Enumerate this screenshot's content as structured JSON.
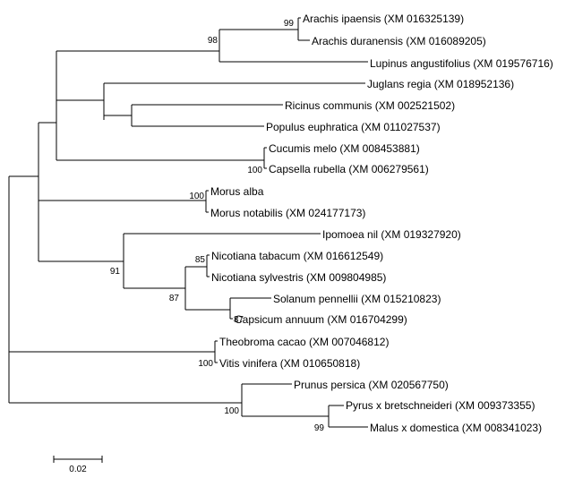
{
  "tree": {
    "taxa": [
      {
        "id": "t1",
        "label": "Arachis ipaensis (XM 016325139)"
      },
      {
        "id": "t2",
        "label": "Arachis duranensis (XM 016089205)"
      },
      {
        "id": "t3",
        "label": "Lupinus angustifolius (XM 019576716)"
      },
      {
        "id": "t4",
        "label": "Juglans regia (XM 018952136)"
      },
      {
        "id": "t5",
        "label": "Ricinus communis (XM 002521502)"
      },
      {
        "id": "t6",
        "label": "Populus euphratica (XM 011027537)"
      },
      {
        "id": "t7",
        "label": "Cucumis melo (XM 008453881)"
      },
      {
        "id": "t8",
        "label": "Capsella rubella (XM 006279561)"
      },
      {
        "id": "t9",
        "label": "Morus alba"
      },
      {
        "id": "t10",
        "label": "Morus notabilis (XM 024177173)"
      },
      {
        "id": "t11",
        "label": "Ipomoea nil (XM 019327920)"
      },
      {
        "id": "t12",
        "label": "Nicotiana tabacum (XM 016612549)"
      },
      {
        "id": "t13",
        "label": "Nicotiana sylvestris (XM 009804985)"
      },
      {
        "id": "t14",
        "label": "Solanum pennellii (XM 015210823)"
      },
      {
        "id": "t15",
        "label": "Capsicum annuum (XM 016704299)"
      },
      {
        "id": "t16",
        "label": "Theobroma cacao (XM 007046812)"
      },
      {
        "id": "t17",
        "label": "Vitis vinifera (XM 010650818)"
      },
      {
        "id": "t18",
        "label": "Prunus persica (XM 020567750)"
      },
      {
        "id": "t19",
        "label": "Pyrus x bretschneideri (XM 009373355)"
      },
      {
        "id": "t20",
        "label": "Malus x domestica (XM 008341023)"
      }
    ],
    "bootstrap": [
      {
        "id": "b1",
        "value": "99"
      },
      {
        "id": "b2",
        "value": "98"
      },
      {
        "id": "b3",
        "value": "100"
      },
      {
        "id": "b4",
        "value": "100"
      },
      {
        "id": "b5",
        "value": "85"
      },
      {
        "id": "b6",
        "value": "91"
      },
      {
        "id": "b7",
        "value": "87"
      },
      {
        "id": "b8",
        "value": "87"
      },
      {
        "id": "b9",
        "value": "100"
      },
      {
        "id": "b10",
        "value": "100"
      },
      {
        "id": "b11",
        "value": "99"
      }
    ],
    "scale_bar": {
      "value": 0.02,
      "label": "0.02"
    }
  }
}
